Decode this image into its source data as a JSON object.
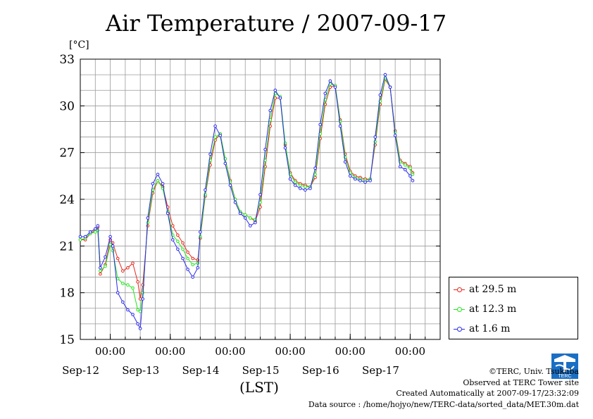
{
  "title": "Air Temperature / 2007-09-17",
  "unit_label": "[°C]",
  "x_axis_label": "(LST)",
  "credits": [
    "©TERC, Univ. Tsukuba",
    "Observed at TERC Tower site",
    "Created Automatically at 2007-09-17/23:32:09",
    "Data source : /home/hojyo/new/TERC-data/sorted_data/MET.30m.dat"
  ],
  "logo_text": "TERC",
  "colors": {
    "at_29_5": "#e8251a",
    "at_12_3": "#22e81a",
    "at_1_6": "#2a2aee",
    "grid": "#9a9a9a"
  },
  "chart_data": {
    "type": "line",
    "title": "Air Temperature / 2007-09-17",
    "ylabel": "[°C]",
    "xlabel": "(LST)",
    "ylim": [
      15,
      33
    ],
    "yticks": [
      15,
      18,
      21,
      24,
      27,
      30,
      33
    ],
    "xlim_hours": [
      0,
      144
    ],
    "x_start": "2007-09-11 12:00",
    "xtick_labels": [
      {
        "hour": 12,
        "time": "00:00",
        "date": "Sep-12"
      },
      {
        "hour": 36,
        "time": "00:00",
        "date": "Sep-13"
      },
      {
        "hour": 60,
        "time": "00:00",
        "date": "Sep-14"
      },
      {
        "hour": 84,
        "time": "00:00",
        "date": "Sep-15"
      },
      {
        "hour": 108,
        "time": "00:00",
        "date": "Sep-16"
      },
      {
        "hour": 132,
        "time": "00:00",
        "date": "Sep-17"
      }
    ],
    "grid": true,
    "legend_position": "bottom-right outside",
    "series": [
      {
        "name": "at 29.5 m",
        "color": "#e8251a",
        "points": [
          [
            0,
            21.4
          ],
          [
            2,
            21.4
          ],
          [
            4,
            21.8
          ],
          [
            6,
            22
          ],
          [
            7,
            22.2
          ],
          [
            8,
            19.2
          ],
          [
            10,
            19.8
          ],
          [
            12,
            21.4
          ],
          [
            13,
            21.2
          ],
          [
            15,
            20.2
          ],
          [
            17,
            19.4
          ],
          [
            19,
            19.6
          ],
          [
            21,
            19.9
          ],
          [
            23,
            18.7
          ],
          [
            24,
            17.6
          ],
          [
            25,
            18.5
          ],
          [
            27,
            22.3
          ],
          [
            29,
            24.4
          ],
          [
            31,
            25.2
          ],
          [
            33,
            24.8
          ],
          [
            35,
            23.5
          ],
          [
            37,
            22.3
          ],
          [
            39,
            21.7
          ],
          [
            41,
            21.2
          ],
          [
            43,
            20.6
          ],
          [
            45,
            20.2
          ],
          [
            47,
            20.1
          ],
          [
            48,
            21.5
          ],
          [
            50,
            24.2
          ],
          [
            52,
            26.2
          ],
          [
            54,
            27.8
          ],
          [
            56,
            28.2
          ],
          [
            58,
            26.6
          ],
          [
            60,
            25.2
          ],
          [
            62,
            24
          ],
          [
            64,
            23.2
          ],
          [
            66,
            23
          ],
          [
            68,
            22.8
          ],
          [
            70,
            22.6
          ],
          [
            72,
            23.5
          ],
          [
            74,
            26.1
          ],
          [
            76,
            28.7
          ],
          [
            78,
            30.5
          ],
          [
            80,
            30.5
          ],
          [
            82,
            27.5
          ],
          [
            84,
            25.7
          ],
          [
            86,
            25.2
          ],
          [
            88,
            25
          ],
          [
            90,
            24.9
          ],
          [
            92,
            24.8
          ],
          [
            94,
            25.4
          ],
          [
            96,
            27.9
          ],
          [
            98,
            30.1
          ],
          [
            100,
            31.2
          ],
          [
            102,
            31.3
          ],
          [
            104,
            29.1
          ],
          [
            106,
            26.9
          ],
          [
            108,
            25.8
          ],
          [
            110,
            25.5
          ],
          [
            112,
            25.4
          ],
          [
            114,
            25.3
          ],
          [
            116,
            25.3
          ],
          [
            118,
            27.5
          ],
          [
            120,
            30.1
          ],
          [
            122,
            31.7
          ],
          [
            124,
            31.2
          ],
          [
            126,
            28.4
          ],
          [
            128,
            26.5
          ],
          [
            130,
            26.3
          ],
          [
            132,
            26.1
          ],
          [
            133,
            25.7
          ]
        ]
      },
      {
        "name": "at 12.3 m",
        "color": "#22e81a",
        "points": [
          [
            0,
            21.4
          ],
          [
            2,
            21.5
          ],
          [
            4,
            21.8
          ],
          [
            6,
            21.9
          ],
          [
            7,
            22
          ],
          [
            8,
            19.4
          ],
          [
            10,
            19.7
          ],
          [
            12,
            21.1
          ],
          [
            13,
            20.7
          ],
          [
            15,
            18.9
          ],
          [
            17,
            18.6
          ],
          [
            19,
            18.5
          ],
          [
            21,
            18.3
          ],
          [
            23,
            16.9
          ],
          [
            24,
            16.8
          ],
          [
            25,
            18
          ],
          [
            27,
            22.5
          ],
          [
            29,
            24.6
          ],
          [
            31,
            25.2
          ],
          [
            33,
            24.7
          ],
          [
            35,
            23.2
          ],
          [
            37,
            21.7
          ],
          [
            39,
            21.3
          ],
          [
            41,
            20.8
          ],
          [
            43,
            20.2
          ],
          [
            45,
            19.8
          ],
          [
            47,
            19.9
          ],
          [
            48,
            21.6
          ],
          [
            50,
            24.3
          ],
          [
            52,
            26.5
          ],
          [
            54,
            28
          ],
          [
            56,
            28.2
          ],
          [
            58,
            26.6
          ],
          [
            60,
            25.1
          ],
          [
            62,
            24
          ],
          [
            64,
            23.2
          ],
          [
            66,
            23
          ],
          [
            68,
            22.8
          ],
          [
            70,
            22.7
          ],
          [
            72,
            23.8
          ],
          [
            74,
            26.5
          ],
          [
            76,
            29.1
          ],
          [
            78,
            30.8
          ],
          [
            80,
            30.6
          ],
          [
            82,
            27.6
          ],
          [
            84,
            25.6
          ],
          [
            86,
            25.1
          ],
          [
            88,
            24.9
          ],
          [
            90,
            24.8
          ],
          [
            92,
            24.8
          ],
          [
            94,
            25.6
          ],
          [
            96,
            28.2
          ],
          [
            98,
            30.4
          ],
          [
            100,
            31.4
          ],
          [
            102,
            31.3
          ],
          [
            104,
            29
          ],
          [
            106,
            26.7
          ],
          [
            108,
            25.7
          ],
          [
            110,
            25.4
          ],
          [
            112,
            25.3
          ],
          [
            114,
            25.2
          ],
          [
            116,
            25.3
          ],
          [
            118,
            27.7
          ],
          [
            120,
            30.3
          ],
          [
            122,
            31.8
          ],
          [
            124,
            31.2
          ],
          [
            126,
            28.3
          ],
          [
            128,
            26.4
          ],
          [
            130,
            26.2
          ],
          [
            132,
            26
          ],
          [
            133,
            25.6
          ]
        ]
      },
      {
        "name": "at 1.6 m",
        "color": "#2a2aee",
        "points": [
          [
            0,
            21.6
          ],
          [
            2,
            21.6
          ],
          [
            4,
            21.9
          ],
          [
            6,
            22.1
          ],
          [
            7,
            22.3
          ],
          [
            8,
            19.6
          ],
          [
            10,
            20.3
          ],
          [
            12,
            21.6
          ],
          [
            13,
            21
          ],
          [
            15,
            18
          ],
          [
            17,
            17.4
          ],
          [
            19,
            16.9
          ],
          [
            21,
            16.6
          ],
          [
            23,
            16
          ],
          [
            24,
            15.7
          ],
          [
            25,
            17.6
          ],
          [
            27,
            22.8
          ],
          [
            29,
            25
          ],
          [
            31,
            25.6
          ],
          [
            33,
            25
          ],
          [
            35,
            23.1
          ],
          [
            37,
            21.4
          ],
          [
            39,
            20.8
          ],
          [
            41,
            20.2
          ],
          [
            43,
            19.5
          ],
          [
            45,
            19
          ],
          [
            47,
            19.6
          ],
          [
            48,
            21.9
          ],
          [
            50,
            24.6
          ],
          [
            52,
            26.9
          ],
          [
            54,
            28.7
          ],
          [
            56,
            28.1
          ],
          [
            58,
            26.3
          ],
          [
            60,
            24.9
          ],
          [
            62,
            23.8
          ],
          [
            64,
            23.1
          ],
          [
            66,
            22.8
          ],
          [
            68,
            22.3
          ],
          [
            70,
            22.5
          ],
          [
            72,
            24.3
          ],
          [
            74,
            27.2
          ],
          [
            76,
            29.7
          ],
          [
            78,
            31
          ],
          [
            80,
            30.5
          ],
          [
            82,
            27.3
          ],
          [
            84,
            25.3
          ],
          [
            86,
            24.9
          ],
          [
            88,
            24.7
          ],
          [
            90,
            24.6
          ],
          [
            92,
            24.7
          ],
          [
            94,
            26
          ],
          [
            96,
            28.8
          ],
          [
            98,
            30.8
          ],
          [
            100,
            31.6
          ],
          [
            102,
            31.2
          ],
          [
            104,
            28.7
          ],
          [
            106,
            26.4
          ],
          [
            108,
            25.5
          ],
          [
            110,
            25.3
          ],
          [
            112,
            25.2
          ],
          [
            114,
            25.1
          ],
          [
            116,
            25.2
          ],
          [
            118,
            28
          ],
          [
            120,
            30.7
          ],
          [
            122,
            32
          ],
          [
            124,
            31.2
          ],
          [
            126,
            28.1
          ],
          [
            128,
            26.1
          ],
          [
            130,
            25.9
          ],
          [
            132,
            25.5
          ],
          [
            133,
            25.2
          ]
        ]
      }
    ]
  }
}
